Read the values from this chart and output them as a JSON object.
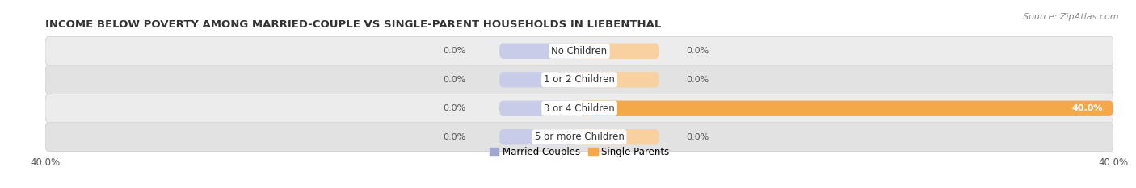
{
  "title": "INCOME BELOW POVERTY AMONG MARRIED-COUPLE VS SINGLE-PARENT HOUSEHOLDS IN LIEBENTHAL",
  "source": "Source: ZipAtlas.com",
  "categories": [
    "No Children",
    "1 or 2 Children",
    "3 or 4 Children",
    "5 or more Children"
  ],
  "married_values": [
    0.0,
    0.0,
    0.0,
    0.0
  ],
  "single_values": [
    0.0,
    0.0,
    40.0,
    0.0
  ],
  "married_color": "#a0a8d0",
  "married_color_light": "#c8cce8",
  "single_color": "#f5a84a",
  "single_color_light": "#f9d0a0",
  "married_label": "Married Couples",
  "single_label": "Single Parents",
  "xlim": 40.0,
  "min_bar_width": 6.0,
  "bar_height": 0.62,
  "row_bg_odd": "#ececec",
  "row_bg_even": "#e2e2e2",
  "title_fontsize": 9.5,
  "axis_fontsize": 8.5,
  "label_fontsize": 8.0,
  "category_fontsize": 8.5,
  "source_fontsize": 8.0
}
